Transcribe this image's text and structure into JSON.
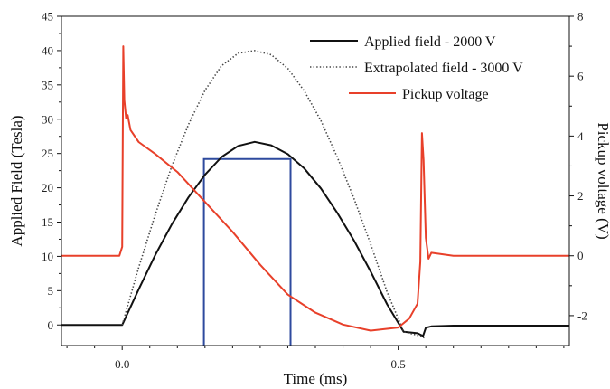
{
  "chart_data": {
    "type": "line",
    "xlabel": "Time (ms)",
    "ylabel_left": "Applied Field (Tesla)",
    "ylabel_right": "Pickup voltage (V)",
    "xlim": [
      -0.11,
      0.81
    ],
    "ylim_left": [
      -3,
      45
    ],
    "ylim_right": [
      -3.0,
      8.0
    ],
    "x_ticks": [
      0.0,
      0.5
    ],
    "x_tick_labels": [
      "0.0",
      "0.5"
    ],
    "y_left_ticks": [
      0,
      5,
      10,
      15,
      20,
      25,
      30,
      35,
      40,
      45
    ],
    "y_left_tick_labels": [
      "0",
      "5",
      "10",
      "15",
      "20",
      "25",
      "30",
      "35",
      "40",
      "45"
    ],
    "y_right_ticks": [
      -2,
      0,
      2,
      4,
      6,
      8
    ],
    "y_right_tick_labels": [
      "-2",
      "0",
      "2",
      "4",
      "6",
      "8"
    ],
    "legend_position": "top-right",
    "series": [
      {
        "name": "Applied field - 2000 V",
        "axis": "left",
        "color": "#111111",
        "style": "solid",
        "x": [
          -0.11,
          0.0,
          0.03,
          0.06,
          0.09,
          0.12,
          0.15,
          0.18,
          0.21,
          0.24,
          0.27,
          0.3,
          0.33,
          0.36,
          0.39,
          0.42,
          0.45,
          0.48,
          0.51,
          0.535,
          0.545,
          0.55,
          0.56,
          0.6,
          0.81
        ],
        "values": [
          0,
          0,
          5.2,
          10.2,
          14.7,
          18.6,
          21.9,
          24.5,
          26.1,
          26.7,
          26.2,
          24.9,
          22.8,
          19.9,
          16.3,
          12.3,
          7.8,
          3.0,
          -1.0,
          -1.2,
          -1.6,
          -0.4,
          -0.2,
          -0.1,
          -0.1
        ]
      },
      {
        "name": "Extrapolated field - 3000 V",
        "axis": "left",
        "color": "#444444",
        "style": "dotted",
        "x": [
          0.0,
          0.03,
          0.06,
          0.09,
          0.12,
          0.15,
          0.18,
          0.21,
          0.24,
          0.27,
          0.3,
          0.33,
          0.36,
          0.39,
          0.42,
          0.45,
          0.48,
          0.51,
          0.54,
          0.55
        ],
        "values": [
          0,
          8.4,
          16.1,
          23.2,
          29.2,
          34.2,
          37.8,
          39.6,
          40.0,
          39.4,
          37.4,
          34.1,
          29.8,
          24.4,
          18.4,
          11.8,
          4.8,
          -1.0,
          -1.6,
          -2.0
        ]
      },
      {
        "name": "Pickup voltage",
        "axis": "right",
        "color": "#e8402a",
        "style": "solid",
        "x": [
          -0.11,
          -0.005,
          0.0,
          0.002,
          0.004,
          0.007,
          0.01,
          0.015,
          0.03,
          0.06,
          0.1,
          0.15,
          0.2,
          0.25,
          0.3,
          0.35,
          0.4,
          0.45,
          0.5,
          0.52,
          0.535,
          0.54,
          0.543,
          0.546,
          0.55,
          0.555,
          0.56,
          0.6,
          0.81
        ],
        "values": [
          0.0,
          0.0,
          0.3,
          7.0,
          5.2,
          4.6,
          4.7,
          4.2,
          3.8,
          3.4,
          2.8,
          1.8,
          0.8,
          -0.3,
          -1.3,
          -1.9,
          -2.3,
          -2.5,
          -2.4,
          -2.1,
          -1.6,
          -0.2,
          4.1,
          3.2,
          0.6,
          -0.1,
          0.1,
          0.0,
          0.0
        ]
      }
    ],
    "annotations": [
      {
        "type": "rectangle",
        "color": "#2e4a9e",
        "axis": "left",
        "x0": 0.148,
        "x1": 0.305,
        "y0": -3,
        "y1": 24.2
      }
    ]
  }
}
